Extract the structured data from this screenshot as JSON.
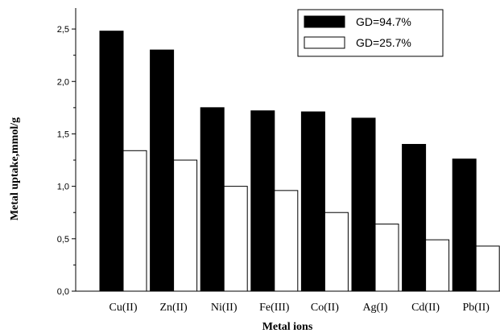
{
  "chart_data": {
    "type": "bar",
    "categories": [
      "Cu(II)",
      "Zn(II)",
      "Ni(II)",
      "Fe(III)",
      "Co(II)",
      "Ag(I)",
      "Cd(II)",
      "Pb(II)"
    ],
    "series": [
      {
        "name": "GD=94.7%",
        "color": "#000000",
        "values": [
          2.48,
          2.3,
          1.75,
          1.72,
          1.71,
          1.65,
          1.4,
          1.26
        ]
      },
      {
        "name": "GD=25.7%",
        "color": "#ffffff",
        "values": [
          1.34,
          1.25,
          1.0,
          0.96,
          0.75,
          0.64,
          0.49,
          0.43
        ]
      }
    ],
    "xlabel": "Metal ions",
    "ylabel": "Metal uptake,mmol/g",
    "ylim": [
      0,
      2.7
    ],
    "yticks": [
      "0,0",
      "0,5",
      "1,0",
      "1,5",
      "2,0",
      "2,5"
    ],
    "ytick_values": [
      0,
      0.5,
      1.0,
      1.5,
      2.0,
      2.5
    ],
    "legend_position": "top-right",
    "grid": false
  }
}
